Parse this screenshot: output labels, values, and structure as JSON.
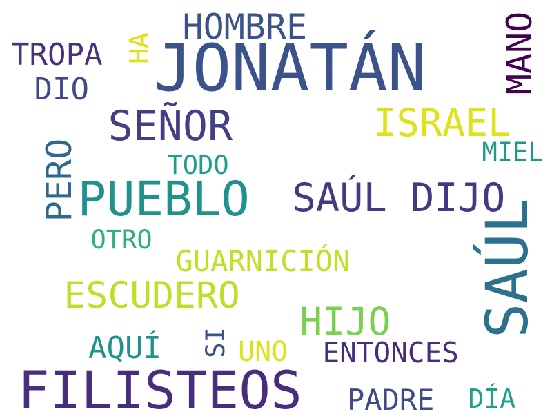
{
  "word_cloud": {
    "words": [
      {
        "key": "jonatan",
        "text": "JONATÁN",
        "color": "#3b528b"
      },
      {
        "key": "filisteos",
        "text": "FILISTEOS",
        "color": "#472d7b"
      },
      {
        "key": "saul_vertical",
        "text": "SAÚL",
        "color": "#2c728e"
      },
      {
        "key": "pueblo",
        "text": "PUEBLO",
        "color": "#21918c"
      },
      {
        "key": "saul_dijo",
        "text": "SAÚL DIJO",
        "color": "#443983"
      },
      {
        "key": "senor",
        "text": "SEÑOR",
        "color": "#433e85"
      },
      {
        "key": "israel",
        "text": "ISRAEL",
        "color": "#dde318"
      },
      {
        "key": "escudero",
        "text": "ESCUDERO",
        "color": "#bddf26"
      },
      {
        "key": "hijo",
        "text": "HIJO",
        "color": "#7ad151"
      },
      {
        "key": "hombre",
        "text": "HOMBRE",
        "color": "#3b528b"
      },
      {
        "key": "tropa",
        "text": "TROPA",
        "color": "#46327e"
      },
      {
        "key": "dio",
        "text": "DIO",
        "color": "#3e4a89"
      },
      {
        "key": "ha",
        "text": "HA",
        "color": "#dde318"
      },
      {
        "key": "mano",
        "text": "MANO",
        "color": "#440154"
      },
      {
        "key": "pero",
        "text": "PERO",
        "color": "#31688e"
      },
      {
        "key": "todo",
        "text": "TODO",
        "color": "#1f9e89"
      },
      {
        "key": "miel",
        "text": "MIEL",
        "color": "#1f9a8a"
      },
      {
        "key": "otro",
        "text": "OTRO",
        "color": "#2db27d"
      },
      {
        "key": "guarnicion",
        "text": "GUARNICIÓN",
        "color": "#c2df23"
      },
      {
        "key": "aqui",
        "text": "AQUÍ",
        "color": "#20928c"
      },
      {
        "key": "si",
        "text": "SI",
        "color": "#3b528b"
      },
      {
        "key": "uno",
        "text": "UNO",
        "color": "#dde318"
      },
      {
        "key": "entonces",
        "text": "ENTONCES",
        "color": "#472d7b"
      },
      {
        "key": "padre",
        "text": "PADRE",
        "color": "#3e4a89"
      },
      {
        "key": "dia",
        "text": "DÍA",
        "color": "#1f9e89"
      }
    ]
  }
}
